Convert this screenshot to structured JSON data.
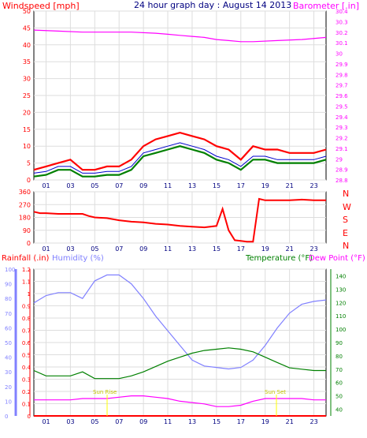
{
  "header": {
    "left_title": "Windspeed [mph]",
    "center_title": "24 hour graph day : August 14 2013",
    "right_title": "Barometer [.in]"
  },
  "wind_panel": {
    "labels": {
      "compass": [
        "N",
        "W",
        "S",
        "E",
        "N"
      ]
    },
    "bottom_labels": {
      "rainfall": "Rainfall (.in)",
      "humidity": "Humidity (%)",
      "temperature": "Temperature (°F)",
      "dewpoint": "Dew Point (°F)"
    },
    "annotations": {
      "sunrise": "Sun Rise",
      "sunset": "Sun Set"
    }
  },
  "colors": {
    "wind_gust": "#ff0000",
    "wind_avg": "#008000",
    "wind_avg_line": "#0000cc",
    "barometer": "#ff00ff",
    "direction": "#ff0000",
    "rain": "#ff0000",
    "humidity": "#8080ff",
    "temperature": "#008000",
    "dewpoint": "#ff00ff",
    "sun_marker": "#ffff00",
    "grid": "#dddddd",
    "frame": "#000000",
    "axis_left_wind": "#ff0000",
    "axis_right_baro": "#ff00ff",
    "axis_humidity": "#8080ff",
    "axis_temperature": "#008000",
    "xtick_text": "#000080"
  },
  "chart_data": [
    {
      "id": "wind",
      "type": "line",
      "title": "24 hour graph day : August 14 2013",
      "x_ticks": [
        "01",
        "03",
        "05",
        "07",
        "09",
        "11",
        "13",
        "15",
        "17",
        "19",
        "21",
        "23"
      ],
      "x_range": [
        0,
        24
      ],
      "y_ticks": [
        0,
        5,
        10,
        15,
        20,
        25,
        30,
        35,
        40,
        45,
        50
      ],
      "y_range": [
        0,
        50
      ],
      "y_right_ticks": [
        "28.8",
        "28.9",
        "29",
        "29.1",
        "29.2",
        "29.3",
        "29.4",
        "29.5",
        "29.6",
        "29.7",
        "29.8",
        "29.9",
        "30",
        "30.1",
        "30.2",
        "30.3",
        "30.4"
      ],
      "y_right_range": [
        28.8,
        30.4
      ],
      "xlabel": "",
      "ylabel": "Windspeed [mph]",
      "y2label": "Barometer [.in]",
      "series": [
        {
          "name": "Windspeed [mph]",
          "role": "gust",
          "x": [
            0,
            1,
            2,
            3,
            4,
            5,
            6,
            7,
            8,
            9,
            10,
            11,
            12,
            13,
            14,
            15,
            16,
            17,
            18,
            19,
            20,
            21,
            22,
            23,
            24
          ],
          "values": [
            3,
            4,
            5,
            6,
            3,
            3,
            4,
            4,
            6,
            10,
            12,
            13,
            14,
            13,
            12,
            10,
            9,
            6,
            10,
            9,
            9,
            8,
            8,
            8,
            9
          ]
        },
        {
          "name": "Windspeed [mph]",
          "role": "average",
          "x": [
            0,
            1,
            2,
            3,
            4,
            5,
            6,
            7,
            8,
            9,
            10,
            11,
            12,
            13,
            14,
            15,
            16,
            17,
            18,
            19,
            20,
            21,
            22,
            23,
            24
          ],
          "values": [
            1,
            1.5,
            3,
            3,
            1,
            1,
            1.5,
            1.5,
            3,
            7,
            8,
            9,
            10,
            9,
            8,
            6,
            5,
            3,
            6,
            6,
            5,
            5,
            5,
            5,
            6
          ]
        },
        {
          "name": "Barometer [.in]",
          "role": "barometer",
          "x": [
            0,
            2,
            4,
            6,
            8,
            10,
            11,
            12,
            13,
            14,
            15,
            16,
            17,
            18,
            20,
            22,
            24
          ],
          "values": [
            30.22,
            30.21,
            30.2,
            30.2,
            30.2,
            30.19,
            30.18,
            30.17,
            30.16,
            30.15,
            30.13,
            30.12,
            30.11,
            30.11,
            30.12,
            30.13,
            30.15
          ]
        }
      ]
    },
    {
      "id": "direction",
      "type": "line",
      "x_ticks": [
        "01",
        "03",
        "05",
        "07",
        "09",
        "11",
        "13",
        "15",
        "17",
        "19",
        "21",
        "23"
      ],
      "x_range": [
        0,
        24
      ],
      "y_ticks": [
        0,
        90,
        180,
        270,
        360
      ],
      "y_range": [
        0,
        360
      ],
      "y_right_labels": [
        "N",
        "W",
        "S",
        "E",
        "N"
      ],
      "series": [
        {
          "name": "",
          "x": [
            0,
            0.5,
            1,
            2,
            3,
            4,
            4.5,
            5,
            6,
            7,
            8,
            9,
            10,
            11,
            12,
            13,
            14,
            15,
            15.5,
            16,
            16.5,
            17,
            17.5,
            18,
            18.5,
            19,
            20,
            21,
            22,
            23,
            24
          ],
          "values": [
            220,
            210,
            210,
            205,
            205,
            205,
            190,
            180,
            175,
            160,
            150,
            145,
            135,
            130,
            120,
            115,
            110,
            120,
            240,
            90,
            20,
            15,
            10,
            10,
            310,
            300,
            300,
            300,
            305,
            300,
            300
          ]
        }
      ]
    },
    {
      "id": "rain_humidity_temp",
      "type": "line",
      "x_ticks": [
        "01",
        "03",
        "05",
        "07",
        "09",
        "11",
        "13",
        "15",
        "17",
        "19",
        "21",
        "23"
      ],
      "x_range": [
        0,
        24
      ],
      "y_ticks_rain": [
        "0",
        "0.1",
        "0.2",
        "0.3",
        "0.4",
        "0.5",
        "0.6",
        "0.7",
        "0.8",
        "0.9",
        "1",
        "1.1",
        "1.2"
      ],
      "y_ticks_humidity": [
        0,
        10,
        20,
        30,
        40,
        50,
        60,
        70,
        80,
        90,
        100
      ],
      "y_ticks_temp": [
        40,
        50,
        60,
        70,
        80,
        90,
        100,
        110,
        120,
        130,
        140
      ],
      "y_range_rain": [
        0,
        1.2
      ],
      "y_range_humidity": [
        0,
        100
      ],
      "y_range_temp": [
        35,
        145
      ],
      "series": [
        {
          "name": "Rainfall (.in)",
          "x": [
            0,
            24
          ],
          "values": [
            0,
            0
          ]
        },
        {
          "name": "Humidity (%)",
          "x": [
            0,
            1,
            2,
            3,
            4,
            5,
            6,
            7,
            8,
            9,
            10,
            11,
            12,
            13,
            14,
            15,
            16,
            17,
            18,
            19,
            20,
            21,
            22,
            23,
            24
          ],
          "values": [
            77,
            82,
            84,
            84,
            80,
            92,
            96,
            96,
            90,
            80,
            68,
            58,
            48,
            38,
            34,
            33,
            32,
            33,
            38,
            48,
            60,
            70,
            76,
            78,
            79
          ]
        },
        {
          "name": "Temperature (°F)",
          "x": [
            0,
            1,
            2,
            3,
            4,
            5,
            6,
            7,
            8,
            9,
            10,
            11,
            12,
            13,
            14,
            15,
            16,
            17,
            18,
            19,
            20,
            21,
            22,
            23,
            24
          ],
          "values": [
            69,
            65,
            65,
            65,
            68,
            63,
            63,
            63,
            65,
            68,
            72,
            76,
            79,
            82,
            84,
            85,
            86,
            85,
            83,
            79,
            75,
            71,
            70,
            69,
            69
          ]
        },
        {
          "name": "Dew Point (°F)",
          "x": [
            0,
            1,
            2,
            3,
            4,
            5,
            6,
            7,
            8,
            9,
            10,
            11,
            12,
            13,
            14,
            15,
            16,
            17,
            18,
            19,
            20,
            21,
            22,
            23,
            24
          ],
          "values": [
            47,
            47,
            47,
            47,
            48,
            48,
            48,
            49,
            50,
            50,
            49,
            48,
            46,
            45,
            44,
            42,
            42,
            43,
            46,
            48,
            48,
            48,
            48,
            47,
            47
          ]
        }
      ]
    }
  ]
}
